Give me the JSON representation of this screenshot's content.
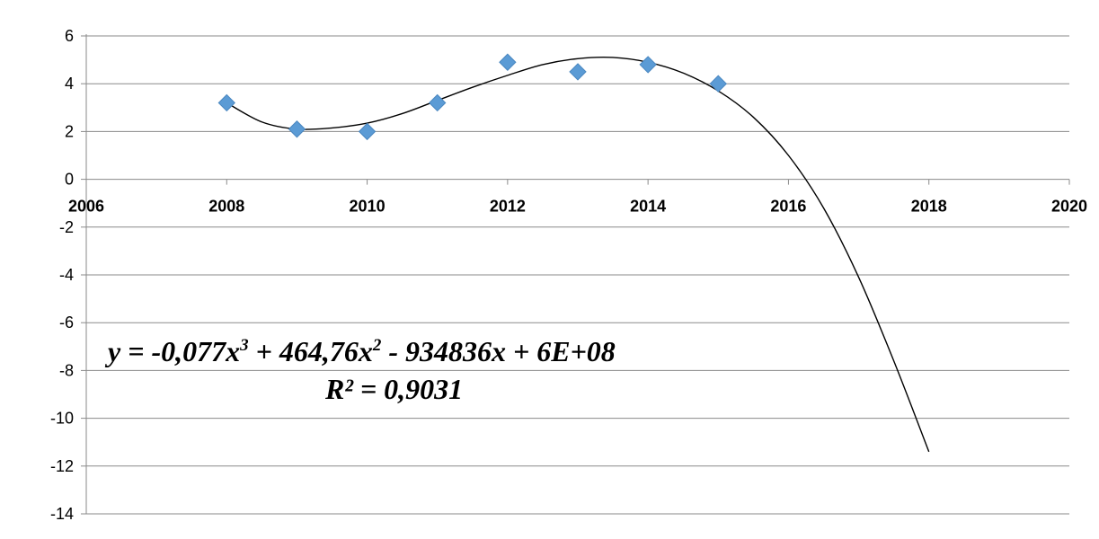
{
  "chart_data": {
    "type": "scatter",
    "title": "",
    "xlabel": "",
    "ylabel": "",
    "xlim": [
      2006,
      2020
    ],
    "ylim": [
      -14,
      6
    ],
    "x_ticks": [
      "2006",
      "2008",
      "2010",
      "2012",
      "2014",
      "2016",
      "2018",
      "2020"
    ],
    "y_ticks": [
      "6",
      "4",
      "2",
      "0",
      "-2",
      "-4",
      "-6",
      "-8",
      "-10",
      "-12",
      "-14"
    ],
    "grid": "horizontal",
    "legend": "none",
    "series": [
      {
        "x": [
          2008,
          2009,
          2010,
          2011,
          2012,
          2013,
          2014,
          2015
        ],
        "y": [
          3.2,
          2.1,
          2.0,
          3.2,
          4.9,
          4.5,
          4.8,
          4.0
        ],
        "marker": "diamond",
        "color": "#5b9bd5"
      }
    ],
    "trendline": {
      "type": "polynomial",
      "order": 3,
      "x_range": [
        2008,
        2018
      ],
      "curve": {
        "x": [
          2008,
          2008.5,
          2009,
          2009.5,
          2010,
          2010.5,
          2011,
          2011.5,
          2012,
          2012.5,
          2013,
          2013.5,
          2014,
          2014.5,
          2015,
          2015.5,
          2016,
          2016.5,
          2017,
          2017.5,
          2018
        ],
        "y": [
          3.2,
          2.4,
          2.1,
          2.15,
          2.35,
          2.75,
          3.3,
          3.85,
          4.35,
          4.8,
          5.05,
          5.1,
          4.9,
          4.45,
          3.7,
          2.6,
          1.0,
          -1.2,
          -4.1,
          -7.6,
          -11.4
        ]
      },
      "color": "#000000"
    },
    "annotations": [
      {
        "equation_prefix": "y = -0,077x",
        "sup1": "3",
        "mid": " + 464,76x",
        "sup2": "2",
        "suffix": " - 934836x + 6E+08"
      },
      {
        "text": "R² = 0,9031"
      }
    ]
  }
}
